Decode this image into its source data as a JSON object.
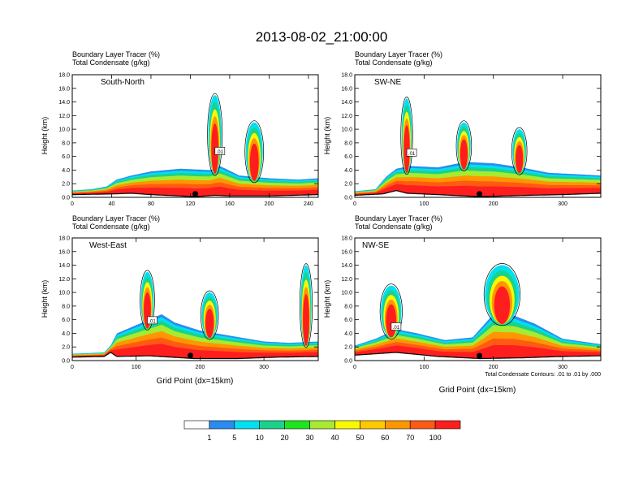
{
  "title": "2013-08-02_21:00:00",
  "panel_subtitle_line1": "Boundary Layer Tracer    (%)",
  "panel_subtitle_line2": "Total Condensate    (g/kg)",
  "ylabel": "Height (km)",
  "xlabel": "Grid Point (dx=15km)",
  "contour_note": "Total Condensate Contours: .01 to .01 by .000",
  "contour_label": ".01",
  "colorbar": {
    "labels": [
      "1",
      "5",
      "10",
      "20",
      "30",
      "40",
      "50",
      "60",
      "70",
      "100"
    ],
    "colors": [
      "#ffffff",
      "#2a8cf0",
      "#00e0f0",
      "#1ad28c",
      "#1ee61e",
      "#a8ea30",
      "#f8f800",
      "#ffc800",
      "#ff9600",
      "#ff5a14",
      "#ff1e1e"
    ]
  },
  "chart_data": [
    {
      "type": "heatmap",
      "label": "South-North",
      "xlim": [
        0,
        250
      ],
      "ylim": [
        0,
        18
      ],
      "xticks": [
        "0",
        "40",
        "80",
        "120",
        "160",
        "200",
        "240"
      ],
      "yticks": [
        "0.0",
        "2.0",
        "4.0",
        "6.0",
        "8.0",
        "10.0",
        "12.0",
        "14.0",
        "16.0",
        "18.0"
      ],
      "terrain": [
        [
          0,
          0.4
        ],
        [
          40,
          0.5
        ],
        [
          60,
          0.6
        ],
        [
          80,
          0.4
        ],
        [
          110,
          0.2
        ],
        [
          125,
          0.1
        ],
        [
          145,
          0.3
        ],
        [
          160,
          0.2
        ],
        [
          200,
          0.2
        ],
        [
          250,
          0.4
        ]
      ],
      "bl_top": [
        [
          0,
          1.0
        ],
        [
          20,
          1.2
        ],
        [
          35,
          1.6
        ],
        [
          45,
          2.6
        ],
        [
          60,
          3.2
        ],
        [
          80,
          3.8
        ],
        [
          110,
          4.2
        ],
        [
          140,
          4.0
        ],
        [
          150,
          4.6
        ],
        [
          170,
          3.2
        ],
        [
          200,
          2.8
        ],
        [
          230,
          2.6
        ],
        [
          250,
          2.8
        ]
      ],
      "plumes": [
        [
          140,
          150,
          15.0
        ],
        [
          178,
          192,
          11.0
        ]
      ],
      "marker_x": 125
    },
    {
      "type": "heatmap",
      "label": "SW-NE",
      "xlim": [
        0,
        355
      ],
      "ylim": [
        0,
        18
      ],
      "xticks": [
        "0",
        "100",
        "200",
        "300"
      ],
      "yticks": [
        "0.0",
        "2.0",
        "4.0",
        "6.0",
        "8.0",
        "10.0",
        "12.0",
        "14.0",
        "16.0",
        "18.0"
      ],
      "terrain": [
        [
          0,
          0.3
        ],
        [
          40,
          0.5
        ],
        [
          60,
          1.0
        ],
        [
          75,
          0.6
        ],
        [
          120,
          0.4
        ],
        [
          180,
          0.1
        ],
        [
          250,
          0.3
        ],
        [
          300,
          0.4
        ],
        [
          355,
          0.6
        ]
      ],
      "bl_top": [
        [
          0,
          0.9
        ],
        [
          30,
          1.2
        ],
        [
          45,
          3.0
        ],
        [
          60,
          4.2
        ],
        [
          80,
          4.6
        ],
        [
          120,
          4.4
        ],
        [
          160,
          5.2
        ],
        [
          200,
          5.0
        ],
        [
          240,
          4.4
        ],
        [
          280,
          3.6
        ],
        [
          320,
          3.4
        ],
        [
          355,
          3.2
        ]
      ],
      "plumes": [
        [
          70,
          80,
          14.5
        ],
        [
          150,
          165,
          11.0
        ],
        [
          230,
          245,
          10.0
        ]
      ],
      "marker_x": 180
    },
    {
      "type": "heatmap",
      "label": "West-East",
      "xlim": [
        0,
        385
      ],
      "ylim": [
        0,
        18
      ],
      "xticks": [
        "0",
        "100",
        "200",
        "300"
      ],
      "yticks": [
        "0.0",
        "2.0",
        "4.0",
        "6.0",
        "8.0",
        "10.0",
        "12.0",
        "14.0",
        "16.0",
        "18.0"
      ],
      "terrain": [
        [
          0,
          0.5
        ],
        [
          50,
          0.6
        ],
        [
          60,
          1.2
        ],
        [
          70,
          0.6
        ],
        [
          120,
          0.7
        ],
        [
          190,
          0.3
        ],
        [
          260,
          0.3
        ],
        [
          320,
          0.5
        ],
        [
          385,
          0.6
        ]
      ],
      "bl_top": [
        [
          0,
          1.0
        ],
        [
          50,
          1.2
        ],
        [
          60,
          2.2
        ],
        [
          70,
          4.0
        ],
        [
          100,
          5.2
        ],
        [
          140,
          6.8
        ],
        [
          160,
          5.6
        ],
        [
          200,
          4.4
        ],
        [
          250,
          3.6
        ],
        [
          300,
          2.8
        ],
        [
          340,
          2.6
        ],
        [
          385,
          2.8
        ]
      ],
      "plumes": [
        [
          110,
          125,
          13.0
        ],
        [
          205,
          225,
          10.0
        ],
        [
          360,
          372,
          14.0
        ]
      ],
      "marker_x": 185
    },
    {
      "type": "heatmap",
      "label": "NW-SE",
      "xlim": [
        0,
        355
      ],
      "ylim": [
        0,
        18
      ],
      "xticks": [
        "0",
        "100",
        "200",
        "300"
      ],
      "yticks": [
        "0.0",
        "2.0",
        "4.0",
        "6.0",
        "8.0",
        "10.0",
        "12.0",
        "14.0",
        "16.0",
        "18.0"
      ],
      "terrain": [
        [
          0,
          0.8
        ],
        [
          60,
          1.2
        ],
        [
          120,
          0.6
        ],
        [
          180,
          0.3
        ],
        [
          240,
          0.4
        ],
        [
          300,
          0.6
        ],
        [
          355,
          0.7
        ]
      ],
      "bl_top": [
        [
          0,
          2.2
        ],
        [
          30,
          3.2
        ],
        [
          60,
          4.6
        ],
        [
          90,
          4.0
        ],
        [
          130,
          3.0
        ],
        [
          170,
          3.4
        ],
        [
          200,
          6.8
        ],
        [
          230,
          6.6
        ],
        [
          260,
          5.4
        ],
        [
          300,
          3.2
        ],
        [
          355,
          2.4
        ]
      ],
      "plumes": [
        [
          40,
          65,
          11.0
        ],
        [
          190,
          235,
          14.0
        ]
      ],
      "marker_x": 180
    }
  ]
}
